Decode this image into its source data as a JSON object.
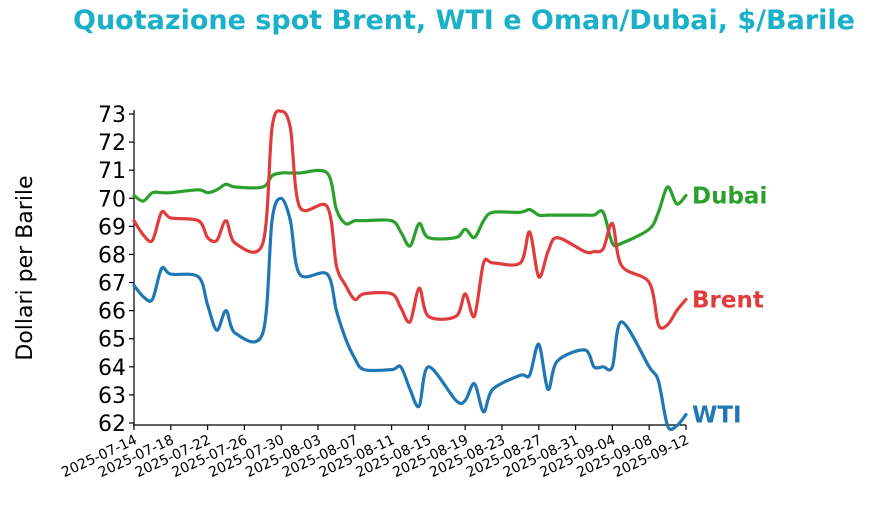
{
  "chart_data": {
    "type": "line",
    "title": "Quotazione spot Brent, WTI e Oman/Dubai, $/Barile",
    "ylabel": "Dollari per Barile",
    "xlabel": "",
    "ylim": [
      62,
      73
    ],
    "yticks": [
      "62",
      "63",
      "64",
      "65",
      "66",
      "67",
      "68",
      "69",
      "70",
      "71",
      "72",
      "73"
    ],
    "xlim": [
      "2025-07-14",
      "2025-09-12"
    ],
    "xticks": [
      "2025-07-14",
      "2025-07-18",
      "2025-07-22",
      "2025-07-26",
      "2025-07-30",
      "2025-08-03",
      "2025-08-07",
      "2025-08-11",
      "2025-08-15",
      "2025-08-19",
      "2025-08-23",
      "2025-08-27",
      "2025-08-31",
      "2025-09-04",
      "2025-09-08",
      "2025-09-12"
    ],
    "grid": false,
    "series": [
      {
        "name": "Dubai",
        "color": "#2ca02c",
        "x": [
          "2025-07-14",
          "2025-07-15",
          "2025-07-16",
          "2025-07-17",
          "2025-07-18",
          "2025-07-21",
          "2025-07-22",
          "2025-07-23",
          "2025-07-24",
          "2025-07-25",
          "2025-07-28",
          "2025-07-29",
          "2025-07-30",
          "2025-07-31",
          "2025-08-01",
          "2025-08-04",
          "2025-08-05",
          "2025-08-06",
          "2025-08-07",
          "2025-08-08",
          "2025-08-11",
          "2025-08-12",
          "2025-08-13",
          "2025-08-14",
          "2025-08-15",
          "2025-08-18",
          "2025-08-19",
          "2025-08-20",
          "2025-08-21",
          "2025-08-22",
          "2025-08-25",
          "2025-08-26",
          "2025-08-27",
          "2025-08-28",
          "2025-08-29",
          "2025-09-01",
          "2025-09-02",
          "2025-09-03",
          "2025-09-04",
          "2025-09-05",
          "2025-09-08",
          "2025-09-09",
          "2025-09-10",
          "2025-09-11",
          "2025-09-12"
        ],
        "values": [
          70.1,
          69.9,
          70.2,
          70.2,
          70.2,
          70.3,
          70.2,
          70.3,
          70.5,
          70.4,
          70.4,
          70.8,
          70.9,
          70.9,
          70.9,
          70.9,
          69.6,
          69.1,
          69.2,
          69.2,
          69.2,
          68.8,
          68.3,
          69.1,
          68.6,
          68.6,
          68.9,
          68.6,
          69.2,
          69.5,
          69.5,
          69.6,
          69.4,
          69.4,
          69.4,
          69.4,
          69.4,
          69.5,
          68.4,
          68.4,
          68.9,
          69.5,
          70.4,
          69.8,
          70.1
        ]
      },
      {
        "name": "Brent",
        "color": "#e03c3c",
        "x": [
          "2025-07-14",
          "2025-07-15",
          "2025-07-16",
          "2025-07-17",
          "2025-07-18",
          "2025-07-21",
          "2025-07-22",
          "2025-07-23",
          "2025-07-24",
          "2025-07-25",
          "2025-07-28",
          "2025-07-29",
          "2025-07-30",
          "2025-07-31",
          "2025-08-01",
          "2025-08-04",
          "2025-08-05",
          "2025-08-06",
          "2025-08-07",
          "2025-08-08",
          "2025-08-11",
          "2025-08-12",
          "2025-08-13",
          "2025-08-14",
          "2025-08-15",
          "2025-08-18",
          "2025-08-19",
          "2025-08-20",
          "2025-08-21",
          "2025-08-22",
          "2025-08-25",
          "2025-08-26",
          "2025-08-27",
          "2025-08-28",
          "2025-08-29",
          "2025-09-01",
          "2025-09-02",
          "2025-09-03",
          "2025-09-04",
          "2025-09-05",
          "2025-09-08",
          "2025-09-09",
          "2025-09-10",
          "2025-09-11",
          "2025-09-12"
        ],
        "values": [
          69.2,
          68.7,
          68.5,
          69.5,
          69.3,
          69.2,
          68.6,
          68.5,
          69.2,
          68.4,
          68.4,
          72.5,
          73.1,
          72.5,
          69.7,
          69.7,
          67.6,
          66.9,
          66.4,
          66.6,
          66.6,
          66.1,
          65.6,
          66.8,
          65.8,
          65.8,
          66.6,
          65.8,
          67.7,
          67.7,
          67.7,
          68.8,
          67.2,
          68.1,
          68.6,
          68.1,
          68.1,
          68.2,
          69.1,
          67.6,
          67.0,
          65.5,
          65.5,
          66.0,
          66.4
        ]
      },
      {
        "name": "WTI",
        "color": "#1f77b4",
        "x": [
          "2025-07-14",
          "2025-07-15",
          "2025-07-16",
          "2025-07-17",
          "2025-07-18",
          "2025-07-21",
          "2025-07-22",
          "2025-07-23",
          "2025-07-24",
          "2025-07-25",
          "2025-07-28",
          "2025-07-29",
          "2025-07-30",
          "2025-07-31",
          "2025-08-01",
          "2025-08-04",
          "2025-08-05",
          "2025-08-06",
          "2025-08-07",
          "2025-08-08",
          "2025-08-11",
          "2025-08-12",
          "2025-08-13",
          "2025-08-14",
          "2025-08-15",
          "2025-08-18",
          "2025-08-19",
          "2025-08-20",
          "2025-08-21",
          "2025-08-22",
          "2025-08-25",
          "2025-08-26",
          "2025-08-27",
          "2025-08-28",
          "2025-08-29",
          "2025-09-01",
          "2025-09-02",
          "2025-09-03",
          "2025-09-04",
          "2025-09-05",
          "2025-09-08",
          "2025-09-09",
          "2025-09-10",
          "2025-09-11",
          "2025-09-12"
        ],
        "values": [
          66.9,
          66.5,
          66.4,
          67.5,
          67.3,
          67.2,
          66.2,
          65.3,
          66.0,
          65.2,
          65.2,
          69.2,
          70.0,
          69.2,
          67.3,
          67.3,
          66.0,
          65.0,
          64.3,
          63.9,
          63.9,
          64.0,
          63.2,
          62.6,
          64.0,
          62.8,
          62.8,
          63.4,
          62.4,
          63.2,
          63.7,
          63.7,
          64.8,
          63.2,
          64.2,
          64.6,
          64.0,
          64.0,
          64.0,
          65.6,
          64.0,
          63.5,
          61.9,
          61.9,
          62.3
        ]
      }
    ]
  }
}
